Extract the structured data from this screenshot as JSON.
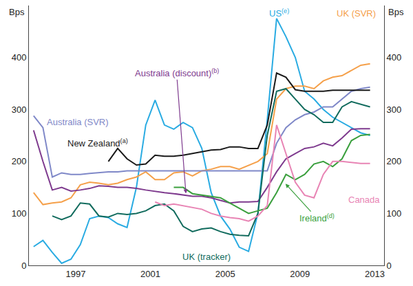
{
  "chart_data": {
    "type": "line",
    "y_label": "Bps",
    "x": [
      1995.25,
      1995.75,
      1996.25,
      1996.75,
      1997.25,
      1997.75,
      1998.25,
      1998.75,
      1999.25,
      1999.75,
      2000.25,
      2000.75,
      2001.25,
      2001.75,
      2002.25,
      2002.75,
      2003.25,
      2003.75,
      2004.25,
      2004.75,
      2005.25,
      2005.75,
      2006.25,
      2006.75,
      2007.25,
      2007.75,
      2008.25,
      2008.75,
      2009.25,
      2009.75,
      2010.25,
      2010.75,
      2011.25,
      2011.75,
      2012.25,
      2012.75,
      2013.25
    ],
    "xlim": [
      1995,
      2014
    ],
    "xticks": [
      {
        "value": 1997.5,
        "label": "1997"
      },
      {
        "value": 2001.5,
        "label": "2001"
      },
      {
        "value": 2005.5,
        "label": "2005"
      },
      {
        "value": 2009.5,
        "label": "2009"
      },
      {
        "value": 2013.5,
        "label": "2013"
      }
    ],
    "ylim": [
      0,
      500
    ],
    "yticks": [
      0,
      100,
      200,
      300,
      400
    ],
    "grid": false,
    "series": [
      {
        "name": "US",
        "note": "(e)",
        "color": "#29abe2",
        "values": [
          36,
          48,
          25,
          4,
          12,
          40,
          90,
          95,
          92,
          80,
          73,
          150,
          270,
          318,
          270,
          262,
          275,
          265,
          225,
          140,
          95,
          70,
          35,
          27,
          100,
          280,
          475,
          440,
          400,
          335,
          320,
          300,
          285,
          275,
          265,
          255,
          250
        ]
      },
      {
        "name": "UK (SVR)",
        "color": "#f5a04a",
        "values": [
          140,
          117,
          120,
          122,
          130,
          155,
          160,
          158,
          155,
          158,
          165,
          170,
          180,
          165,
          165,
          178,
          180,
          172,
          182,
          185,
          190,
          190,
          185,
          192,
          200,
          215,
          320,
          340,
          345,
          345,
          340,
          355,
          362,
          365,
          375,
          385,
          388
        ]
      },
      {
        "name": "Australia (SVR)",
        "color": "#7f88c8",
        "values": [
          288,
          265,
          170,
          178,
          175,
          175,
          177,
          178,
          180,
          180,
          182,
          182,
          182,
          182,
          182,
          182,
          182,
          182,
          182,
          182,
          182,
          182,
          182,
          182,
          182,
          182,
          235,
          265,
          280,
          290,
          295,
          305,
          305,
          320,
          335,
          340,
          343
        ]
      },
      {
        "name": "Australia (discount)",
        "note": "(b)",
        "color": "#7e3a8e",
        "values": [
          260,
          200,
          145,
          150,
          143,
          145,
          148,
          153,
          152,
          150,
          150,
          148,
          145,
          142,
          140,
          138,
          135,
          133,
          133,
          130,
          125,
          120,
          122,
          122,
          123,
          150,
          180,
          205,
          215,
          225,
          228,
          235,
          230,
          245,
          262,
          263,
          263
        ]
      },
      {
        "name": "New Zealand",
        "note": "(a)",
        "color": "#1a1a1a",
        "values": [
          null,
          null,
          null,
          null,
          null,
          null,
          null,
          null,
          200,
          225,
          205,
          193,
          195,
          212,
          210,
          210,
          212,
          215,
          218,
          222,
          223,
          228,
          228,
          225,
          225,
          270,
          370,
          362,
          338,
          335,
          335,
          335,
          337,
          337,
          337,
          337,
          337
        ]
      },
      {
        "name": "UK (tracker)",
        "color": "#116b5d",
        "values": [
          null,
          null,
          95,
          88,
          95,
          120,
          118,
          95,
          93,
          100,
          98,
          100,
          105,
          115,
          118,
          105,
          75,
          65,
          70,
          72,
          65,
          60,
          58,
          57,
          100,
          250,
          335,
          340,
          320,
          300,
          290,
          275,
          275,
          305,
          315,
          310,
          305
        ]
      },
      {
        "name": "Ireland",
        "note": "(d)",
        "color": "#3a9f3d",
        "values": [
          null,
          null,
          null,
          null,
          null,
          null,
          null,
          null,
          null,
          null,
          null,
          null,
          null,
          null,
          null,
          150,
          150,
          138,
          135,
          133,
          130,
          120,
          110,
          100,
          105,
          110,
          140,
          175,
          165,
          175,
          195,
          200,
          190,
          205,
          240,
          250,
          252
        ]
      },
      {
        "name": "Canada",
        "color": "#e884b4",
        "values": [
          null,
          null,
          null,
          null,
          null,
          null,
          null,
          null,
          null,
          null,
          null,
          null,
          null,
          122,
          115,
          118,
          115,
          112,
          108,
          100,
          95,
          92,
          90,
          85,
          95,
          115,
          270,
          215,
          160,
          135,
          130,
          175,
          200,
          200,
          198,
          196,
          196
        ]
      }
    ]
  }
}
